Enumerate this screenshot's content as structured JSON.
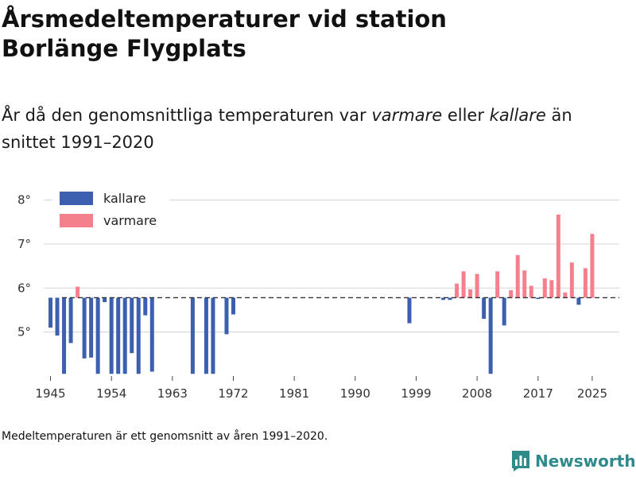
{
  "header": {
    "title_line1": "Årsmedeltemperaturer vid station",
    "title_line2": "Borlänge Flygplats",
    "subtitle_pre": "År då den genomsnittliga temperaturen var ",
    "subtitle_warm": "varmare",
    "subtitle_mid": " eller ",
    "subtitle_cold": "kallare",
    "subtitle_post": " än snittet 1991–2020"
  },
  "footnote": "Medeltemperaturen är ett genomsnitt av åren 1991–2020.",
  "brand": {
    "name": "Newsworthy",
    "icon": "bar-chart-logo-icon"
  },
  "colors": {
    "colder": "#3d5fb0",
    "warmer": "#f4808e",
    "baseline": "#333333",
    "grid": "#d9d9d9",
    "brand": "#2f8a8a"
  },
  "chart_data": {
    "type": "bar",
    "title": "Årsmedeltemperaturer vid station Borlänge Flygplats",
    "xlabel": "",
    "ylabel": "",
    "baseline": 5.78,
    "ylim": [
      4.0,
      8.3
    ],
    "xlim": [
      1944,
      2029
    ],
    "y_ticks": [
      5,
      6,
      7,
      8
    ],
    "y_tick_labels": [
      "5°",
      "6°",
      "7°",
      "8°"
    ],
    "x_ticks": [
      1945,
      1954,
      1963,
      1972,
      1981,
      1990,
      1999,
      2008,
      2017,
      2025
    ],
    "grid": true,
    "legend": {
      "position": "top-left",
      "entries": [
        {
          "label": "kallare",
          "color": "#3d5fb0"
        },
        {
          "label": "varmare",
          "color": "#f4808e"
        }
      ]
    },
    "years": [
      1945,
      1946,
      1947,
      1948,
      1949,
      1950,
      1951,
      1952,
      1953,
      1954,
      1955,
      1956,
      1957,
      1958,
      1959,
      1960,
      1966,
      1968,
      1969,
      1971,
      1972,
      1998,
      2003,
      2004,
      2005,
      2006,
      2007,
      2008,
      2009,
      2010,
      2011,
      2012,
      2013,
      2014,
      2015,
      2016,
      2017,
      2018,
      2019,
      2020,
      2021,
      2022,
      2023,
      2024,
      2025
    ],
    "values": [
      5.1,
      4.92,
      4.05,
      4.75,
      6.03,
      4.4,
      4.42,
      4.05,
      5.68,
      4.05,
      4.05,
      4.05,
      4.52,
      4.05,
      5.38,
      4.1,
      4.05,
      4.05,
      4.05,
      4.95,
      5.4,
      5.2,
      5.73,
      5.73,
      6.1,
      6.38,
      5.97,
      6.32,
      5.3,
      4.05,
      6.38,
      5.15,
      5.95,
      6.75,
      6.4,
      6.05,
      5.75,
      6.22,
      6.18,
      7.67,
      5.9,
      6.58,
      5.62,
      6.45,
      7.23
    ]
  }
}
